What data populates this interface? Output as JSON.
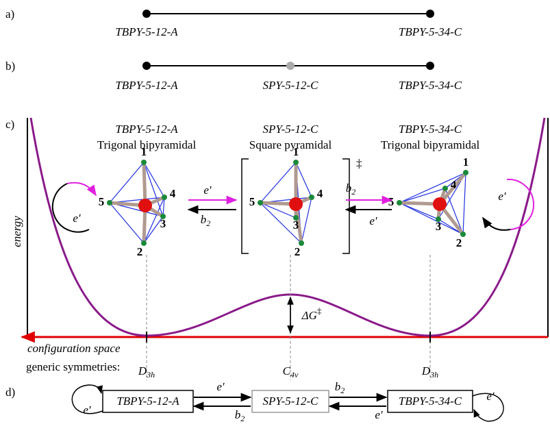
{
  "panels": {
    "a": {
      "label": "a)",
      "nodes": [
        "TBPY-5-12-A",
        "TBPY-5-34-C"
      ]
    },
    "b": {
      "label": "b)",
      "nodes": [
        "TBPY-5-12-A",
        "SPY-5-12-C",
        "TBPY-5-34-C"
      ]
    },
    "c": {
      "label": "c)",
      "structures": [
        {
          "name": "TBPY-5-12-A",
          "shape": "Trigonal bipyramidal",
          "atoms": [
            "1",
            "2",
            "3",
            "4",
            "5"
          ]
        },
        {
          "name": "SPY-5-12-C",
          "shape": "Square pyramidal",
          "atoms": [
            "1",
            "2",
            "3",
            "4",
            "5"
          ]
        },
        {
          "name": "TBPY-5-34-C",
          "shape": "Trigonal bipyramidal",
          "atoms": [
            "1",
            "2",
            "3",
            "4",
            "5"
          ]
        }
      ],
      "transition_mark": "‡",
      "arrow_labels": [
        "e′",
        {
          "base": "b",
          "sub": "2"
        },
        {
          "base": "b",
          "sub": "2"
        },
        "e′"
      ],
      "loop_labels": [
        "e′",
        "e′"
      ],
      "y_axis": "energy",
      "x_axis": "configuration space",
      "symmetries_label": "generic symmetries:",
      "symmetries": [
        {
          "base": "D",
          "sub": "3h"
        },
        {
          "base": "C",
          "sub": "4v"
        },
        {
          "base": "D",
          "sub": "3h"
        }
      ],
      "barrier": {
        "base": "ΔG",
        "sup": "‡"
      }
    },
    "d": {
      "label": "d)",
      "nodes": [
        "TBPY-5-12-A",
        "SPY-5-12-C",
        "TBPY-5-34-C"
      ],
      "arrow_labels": [
        "e′",
        {
          "base": "b",
          "sub": "2"
        },
        {
          "base": "b",
          "sub": "2"
        },
        "e′"
      ],
      "loop_labels": [
        "e′",
        "e′"
      ]
    }
  }
}
